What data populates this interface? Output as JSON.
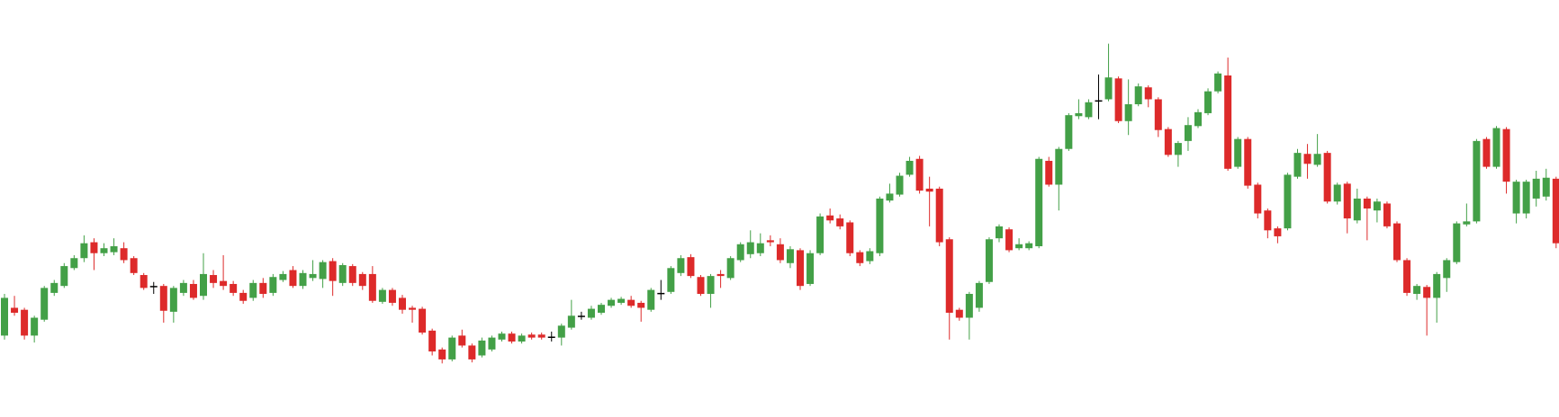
{
  "chart_data": {
    "type": "candlestick",
    "ylim": [
      0,
      420
    ],
    "up_color": "#43a047",
    "down_color": "#dd2a2a",
    "doji_color": "#000000",
    "open": [
      82,
      110,
      108,
      82,
      98,
      125,
      132,
      150,
      160,
      176,
      165,
      166,
      170,
      160,
      143,
      132,
      132,
      106,
      125,
      134,
      122,
      143,
      137,
      134,
      125,
      120,
      135,
      125,
      138,
      148,
      132,
      140,
      139,
      157,
      135,
      152,
      144,
      144,
      116,
      128,
      120,
      110,
      109,
      87,
      68,
      58,
      82,
      72,
      62,
      68,
      78,
      84,
      76,
      83,
      83,
      81,
      80,
      90,
      102,
      100,
      105,
      112,
      115,
      118,
      115,
      108,
      125,
      126,
      145,
      161,
      141,
      124,
      144,
      140,
      158,
      164,
      165,
      178,
      174,
      155,
      168,
      134,
      165,
      203,
      200,
      196,
      166,
      157,
      165,
      218,
      224,
      244,
      260,
      230,
      230,
      179,
      108,
      100,
      110,
      136,
      180,
      189,
      170,
      170,
      172,
      258,
      234,
      270,
      303,
      302,
      319,
      320,
      341,
      298,
      315,
      332,
      320,
      290,
      264,
      278,
      293,
      306,
      328,
      344,
      252,
      280,
      234,
      208,
      190,
      190,
      242,
      265,
      254,
      266,
      217,
      235,
      198,
      220,
      208,
      215,
      195,
      158,
      124,
      131,
      120,
      140,
      156,
      194,
      197,
      280,
      252,
      290,
      205,
      205,
      220,
      222,
      240
    ],
    "high": [
      124,
      122,
      110,
      102,
      132,
      138,
      155,
      163,
      183,
      180,
      175,
      180,
      176,
      162,
      145,
      136,
      134,
      132,
      138,
      138,
      165,
      148,
      163,
      137,
      128,
      138,
      140,
      144,
      147,
      152,
      148,
      158,
      158,
      160,
      155,
      154,
      146,
      152,
      130,
      130,
      123,
      112,
      111,
      89,
      70,
      82,
      88,
      74,
      80,
      82,
      86,
      86,
      84,
      85,
      85,
      86,
      94,
      118,
      106,
      112,
      115,
      120,
      121,
      122,
      117,
      130,
      138,
      152,
      163,
      164,
      143,
      144,
      148,
      162,
      176,
      188,
      185,
      183,
      180,
      172,
      170,
      168,
      205,
      210,
      204,
      198,
      168,
      170,
      222,
      235,
      246,
      262,
      263,
      242,
      232,
      181,
      110,
      126,
      137,
      181,
      194,
      191,
      180,
      177,
      262,
      262,
      272,
      306,
      320,
      320,
      345,
      376,
      343,
      340,
      336,
      334,
      322,
      292,
      278,
      302,
      310,
      331,
      348,
      362,
      282,
      282,
      236,
      210,
      192,
      246,
      270,
      275,
      285,
      268,
      236,
      237,
      230,
      222,
      220,
      217,
      197,
      160,
      134,
      133,
      146,
      160,
      197,
      215,
      280,
      282,
      293,
      292,
      239,
      239,
      248,
      250,
      242
    ],
    "low": [
      78,
      102,
      78,
      75,
      96,
      122,
      130,
      148,
      156,
      148,
      162,
      163,
      155,
      143,
      128,
      124,
      95,
      95,
      122,
      118,
      118,
      130,
      128,
      122,
      114,
      117,
      120,
      122,
      136,
      130,
      129,
      137,
      130,
      122,
      132,
      132,
      128,
      115,
      114,
      112,
      104,
      95,
      83,
      62,
      54,
      56,
      70,
      55,
      60,
      66,
      76,
      74,
      74,
      78,
      78,
      76,
      72,
      88,
      98,
      98,
      103,
      110,
      113,
      110,
      96,
      106,
      118,
      124,
      142,
      140,
      122,
      110,
      130,
      138,
      156,
      160,
      162,
      172,
      155,
      150,
      128,
      132,
      163,
      195,
      189,
      162,
      152,
      154,
      162,
      216,
      222,
      242,
      225,
      192,
      172,
      78,
      97,
      78,
      106,
      134,
      176,
      166,
      168,
      168,
      170,
      232,
      208,
      268,
      300,
      300,
      300,
      318,
      296,
      284,
      313,
      312,
      282,
      262,
      252,
      268,
      291,
      304,
      326,
      248,
      250,
      230,
      200,
      180,
      175,
      188,
      240,
      240,
      252,
      215,
      214,
      185,
      195,
      178,
      196,
      190,
      156,
      122,
      118,
      82,
      95,
      126,
      154,
      192,
      195,
      250,
      250,
      225,
      195,
      200,
      212,
      218,
      170
    ],
    "close": [
      120,
      105,
      82,
      100,
      130,
      135,
      152,
      160,
      175,
      165,
      170,
      172,
      158,
      145,
      130,
      132,
      107,
      130,
      135,
      120,
      144,
      135,
      132,
      125,
      117,
      135,
      124,
      141,
      144,
      132,
      145,
      144,
      156,
      137,
      153,
      135,
      132,
      117,
      128,
      115,
      108,
      108,
      85,
      66,
      58,
      80,
      72,
      58,
      77,
      80,
      84,
      76,
      82,
      80,
      80,
      81,
      92,
      102,
      102,
      109,
      113,
      118,
      119,
      112,
      110,
      128,
      125,
      150,
      160,
      142,
      124,
      142,
      142,
      160,
      174,
      176,
      175,
      176,
      158,
      169,
      132,
      165,
      202,
      198,
      192,
      165,
      155,
      167,
      220,
      225,
      243,
      258,
      228,
      227,
      176,
      105,
      100,
      124,
      135,
      179,
      192,
      168,
      174,
      175,
      260,
      234,
      270,
      304,
      306,
      317,
      319,
      342,
      298,
      315,
      333,
      320,
      289,
      264,
      276,
      294,
      307,
      328,
      346,
      250,
      280,
      233,
      205,
      188,
      182,
      244,
      266,
      255,
      265,
      217,
      234,
      200,
      220,
      210,
      217,
      192,
      158,
      125,
      132,
      120,
      144,
      158,
      195,
      197,
      278,
      252,
      291,
      237,
      237,
      237,
      240,
      241,
      175
    ]
  }
}
